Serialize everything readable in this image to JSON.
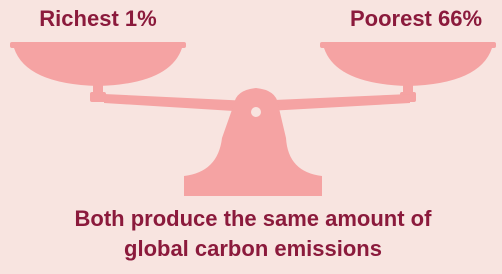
{
  "left_label": "Richest 1%",
  "right_label": "Poorest 66%",
  "caption": {
    "line1": "Both produce the same amount of",
    "line2": "global carbon emissions"
  }
}
